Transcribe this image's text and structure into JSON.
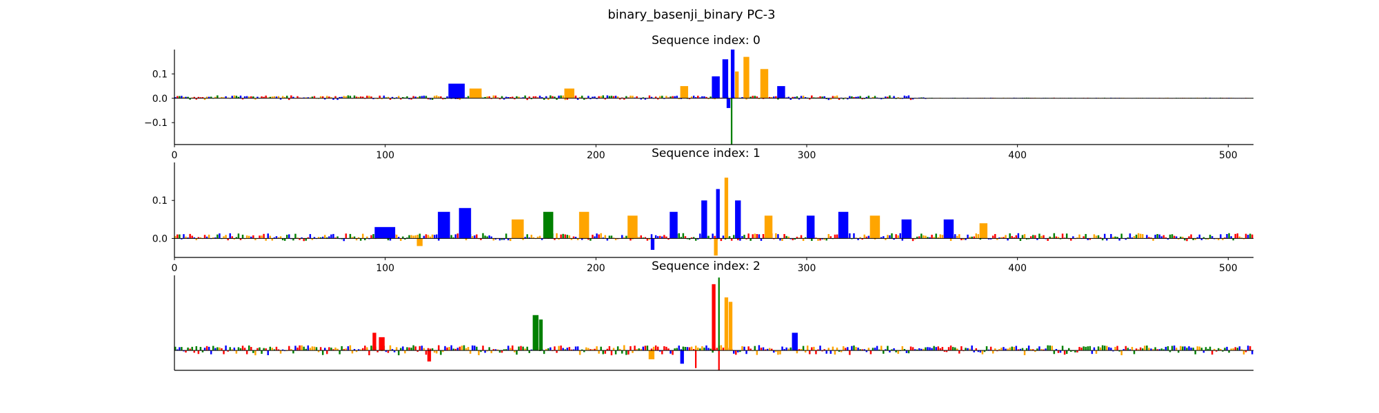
{
  "chart_data": {
    "type": "sequence-logo",
    "title": "binary_basenji_binary PC-3",
    "colors": {
      "A": "#008000",
      "C": "#0000ff",
      "G": "#ffa500",
      "T": "#ff0000"
    },
    "grid": false,
    "panels": [
      {
        "subtitle": "Sequence index: 0",
        "xlim": [
          0,
          512
        ],
        "ylim": [
          -0.19,
          0.2
        ],
        "xticks": [
          0,
          100,
          200,
          300,
          400,
          500
        ],
        "yticks": [
          0.1,
          0.0,
          -0.1
        ],
        "ytick_labels": [
          "0.1",
          "0.0",
          "−0.1"
        ],
        "show_yticks": true,
        "baseline": 0,
        "peaks": [
          {
            "x": 130,
            "v": 0.06,
            "w": 8,
            "base": "C"
          },
          {
            "x": 140,
            "v": 0.04,
            "w": 6,
            "base": "G"
          },
          {
            "x": 185,
            "v": 0.04,
            "w": 5,
            "base": "G"
          },
          {
            "x": 240,
            "v": 0.05,
            "w": 4,
            "base": "G"
          },
          {
            "x": 255,
            "v": 0.09,
            "w": 4,
            "base": "C"
          },
          {
            "x": 260,
            "v": 0.16,
            "w": 3,
            "base": "C"
          },
          {
            "x": 264,
            "v": 0.2,
            "w": 2,
            "base": "C"
          },
          {
            "x": 266,
            "v": 0.11,
            "w": 2,
            "base": "G"
          },
          {
            "x": 270,
            "v": 0.17,
            "w": 3,
            "base": "G"
          },
          {
            "x": 278,
            "v": 0.12,
            "w": 4,
            "base": "G"
          },
          {
            "x": 286,
            "v": 0.05,
            "w": 4,
            "base": "C"
          },
          {
            "x": 264,
            "v": -0.19,
            "w": 1,
            "base": "A"
          },
          {
            "x": 262,
            "v": -0.04,
            "w": 2,
            "base": "C"
          }
        ],
        "noise": 0.01,
        "noise_neg": 0.006,
        "active": [
          0,
          360
        ],
        "seed": 11
      },
      {
        "subtitle": "Sequence index: 1",
        "xlim": [
          0,
          512
        ],
        "ylim": [
          -0.05,
          0.2
        ],
        "xticks": [
          0,
          100,
          200,
          300,
          400,
          500
        ],
        "yticks": [
          0.1,
          0.0
        ],
        "ytick_labels": [
          "0.1",
          "0.0"
        ],
        "show_yticks": true,
        "baseline": 0,
        "peaks": [
          {
            "x": 95,
            "v": 0.03,
            "w": 10,
            "base": "C"
          },
          {
            "x": 125,
            "v": 0.07,
            "w": 6,
            "base": "C"
          },
          {
            "x": 135,
            "v": 0.08,
            "w": 6,
            "base": "C"
          },
          {
            "x": 160,
            "v": 0.05,
            "w": 6,
            "base": "G"
          },
          {
            "x": 175,
            "v": 0.07,
            "w": 5,
            "base": "A"
          },
          {
            "x": 192,
            "v": 0.07,
            "w": 5,
            "base": "G"
          },
          {
            "x": 215,
            "v": 0.06,
            "w": 5,
            "base": "G"
          },
          {
            "x": 235,
            "v": 0.07,
            "w": 4,
            "base": "C"
          },
          {
            "x": 250,
            "v": 0.1,
            "w": 3,
            "base": "C"
          },
          {
            "x": 257,
            "v": 0.13,
            "w": 2,
            "base": "C"
          },
          {
            "x": 261,
            "v": 0.16,
            "w": 2,
            "base": "G"
          },
          {
            "x": 266,
            "v": 0.1,
            "w": 3,
            "base": "C"
          },
          {
            "x": 280,
            "v": 0.06,
            "w": 4,
            "base": "G"
          },
          {
            "x": 300,
            "v": 0.06,
            "w": 4,
            "base": "C"
          },
          {
            "x": 315,
            "v": 0.07,
            "w": 5,
            "base": "C"
          },
          {
            "x": 330,
            "v": 0.06,
            "w": 5,
            "base": "G"
          },
          {
            "x": 345,
            "v": 0.05,
            "w": 5,
            "base": "C"
          },
          {
            "x": 365,
            "v": 0.05,
            "w": 5,
            "base": "C"
          },
          {
            "x": 382,
            "v": 0.04,
            "w": 4,
            "base": "G"
          },
          {
            "x": 256,
            "v": -0.045,
            "w": 2,
            "base": "G"
          },
          {
            "x": 226,
            "v": -0.03,
            "w": 2,
            "base": "C"
          },
          {
            "x": 115,
            "v": -0.02,
            "w": 3,
            "base": "G"
          }
        ],
        "noise": 0.012,
        "noise_neg": 0.006,
        "active": [
          0,
          512
        ],
        "seed": 23
      },
      {
        "subtitle": "Sequence index: 2",
        "xlim": [
          0,
          512
        ],
        "ylim": [
          -0.045,
          0.17
        ],
        "xticks": [],
        "yticks": [],
        "ytick_labels": [],
        "show_yticks": false,
        "baseline": 0,
        "peaks": [
          {
            "x": 94,
            "v": 0.04,
            "w": 2,
            "base": "T"
          },
          {
            "x": 97,
            "v": 0.03,
            "w": 3,
            "base": "T"
          },
          {
            "x": 170,
            "v": 0.08,
            "w": 3,
            "base": "A"
          },
          {
            "x": 173,
            "v": 0.07,
            "w": 2,
            "base": "A"
          },
          {
            "x": 255,
            "v": 0.15,
            "w": 2,
            "base": "T"
          },
          {
            "x": 258,
            "v": 0.165,
            "w": 1,
            "base": "A"
          },
          {
            "x": 261,
            "v": 0.12,
            "w": 2,
            "base": "G"
          },
          {
            "x": 263,
            "v": 0.11,
            "w": 2,
            "base": "G"
          },
          {
            "x": 293,
            "v": 0.04,
            "w": 3,
            "base": "C"
          },
          {
            "x": 258,
            "v": -0.045,
            "w": 1,
            "base": "T"
          },
          {
            "x": 247,
            "v": -0.04,
            "w": 1,
            "base": "T"
          },
          {
            "x": 240,
            "v": -0.03,
            "w": 2,
            "base": "C"
          },
          {
            "x": 120,
            "v": -0.025,
            "w": 2,
            "base": "T"
          },
          {
            "x": 225,
            "v": -0.02,
            "w": 3,
            "base": "G"
          }
        ],
        "noise": 0.01,
        "noise_neg": 0.01,
        "active": [
          0,
          512
        ],
        "seed": 37
      }
    ]
  }
}
